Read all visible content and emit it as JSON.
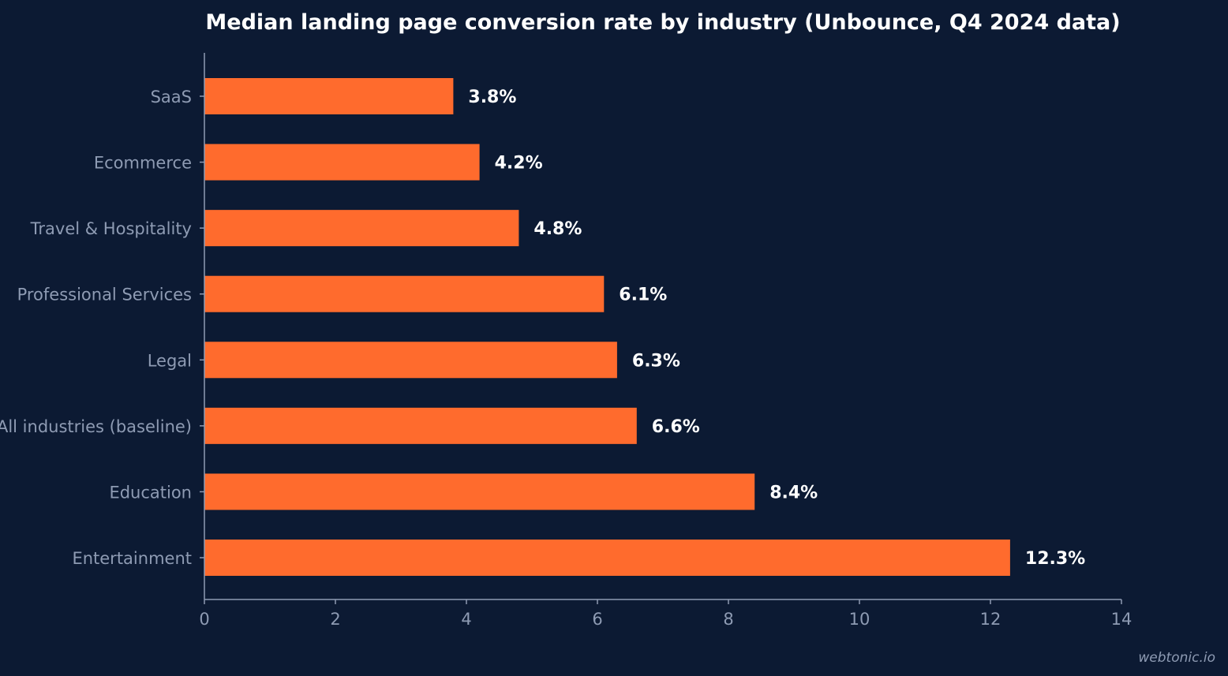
{
  "chart_data": {
    "type": "bar",
    "orientation": "horizontal",
    "title": "Median landing page conversion rate by industry (Unbounce, Q4 2024 data)",
    "xlabel": "",
    "ylabel": "",
    "xlim": [
      0,
      14
    ],
    "xticks": [
      0,
      2,
      4,
      6,
      8,
      10,
      12,
      14
    ],
    "categories": [
      "SaaS",
      "Ecommerce",
      "Travel & Hospitality",
      "Professional Services",
      "Legal",
      "All industries (baseline)",
      "Education",
      "Entertainment"
    ],
    "values": [
      3.8,
      4.2,
      4.8,
      6.1,
      6.3,
      6.6,
      8.4,
      12.3
    ],
    "value_labels": [
      "3.8%",
      "4.2%",
      "4.8%",
      "6.1%",
      "6.3%",
      "6.6%",
      "8.4%",
      "12.3%"
    ],
    "grid": false,
    "legend": "none",
    "colors": {
      "background": "#0c1a33",
      "bar": "#ff6b2d",
      "axis": "#8e9bb3",
      "text": "#ffffff"
    }
  },
  "watermark": "webtonic.io"
}
